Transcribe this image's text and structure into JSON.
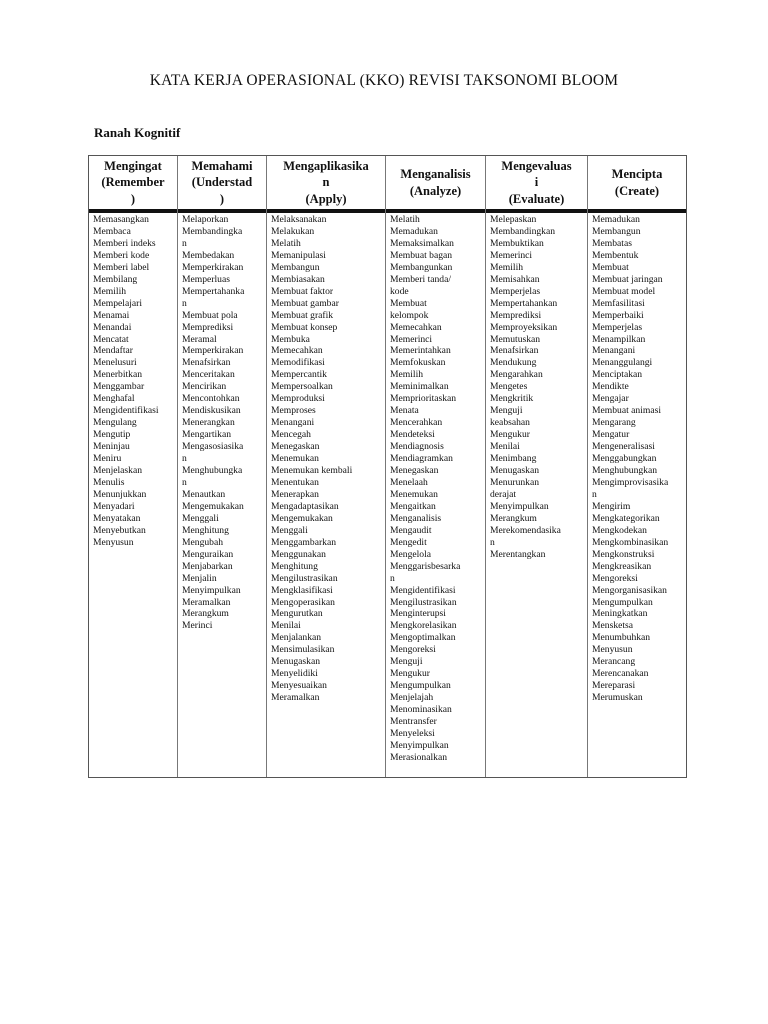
{
  "title": "KATA KERJA OPERASIONAL (KKO) REVISI TAKSONOMI BLOOM",
  "subtitle": "Ranah Kognitif",
  "columns": [
    {
      "header": "Mengingat\n(Remember\n)",
      "items": [
        "Memasangkan",
        "Membaca",
        "Memberi indeks",
        "Memberi kode",
        "Memberi label",
        "Membilang",
        "Memilih",
        "Mempelajari",
        "Menamai",
        "Menandai",
        "Mencatat",
        "Mendaftar",
        "Menelusuri",
        "Menerbitkan",
        "Menggambar",
        "Menghafal",
        "Mengidentifikasi",
        "Mengulang",
        "Mengutip",
        "Meninjau",
        "Meniru",
        "Menjelaskan",
        "Menulis",
        "Menunjukkan",
        "Menyadari",
        "Menyatakan",
        "Menyebutkan",
        "Menyusun"
      ]
    },
    {
      "header": "Memahami\n(Understad\n)",
      "items": [
        "Melaporkan",
        "Membandingka\nn",
        "Membedakan",
        "Memperkirakan",
        "Memperluas",
        "Mempertahanka\nn",
        "Membuat pola",
        "Memprediksi",
        "Meramal",
        "Memperkirakan",
        "Menafsirkan",
        "Menceritakan",
        "Mencirikan",
        "Mencontohkan",
        "Mendiskusikan",
        "Menerangkan",
        "Mengartikan",
        "Mengasosiasika\nn",
        "Menghubungka\nn",
        "Menautkan",
        "Mengemukakan",
        "Menggali",
        "Menghitung",
        "Mengubah",
        "Menguraikan",
        "Menjabarkan",
        "Menjalin",
        "Menyimpulkan",
        "Meramalkan",
        "Merangkum",
        "Merinci"
      ]
    },
    {
      "header": "Mengaplikasika\nn\n(Apply)",
      "items": [
        "Melaksanakan",
        "Melakukan",
        "Melatih",
        "Memanipulasi",
        "Membangun",
        "Membiasakan",
        "Membuat faktor",
        "Membuat gambar",
        "Membuat grafik",
        "Membuat konsep",
        "Membuka",
        "Memecahkan",
        "Memodifikasi",
        "Mempercantik",
        "Mempersoalkan",
        "Memproduksi",
        "Memproses",
        "Menangani",
        "Mencegah",
        "Menegaskan",
        "Menemukan",
        "Menemukan kembali",
        "Menentukan",
        "Menerapkan",
        "Mengadaptasikan",
        "Mengemukakan",
        "Menggali",
        "Menggambarkan",
        "Menggunakan",
        "Menghitung",
        "Mengilustrasikan",
        "Mengklasifikasi",
        "Mengoperasikan",
        "Mengurutkan",
        "Menilai",
        "Menjalankan",
        "Mensimulasikan",
        "Menugaskan",
        "Menyelidiki",
        "Menyesuaikan",
        "Meramalkan"
      ]
    },
    {
      "header": "Menganalisis\n(Analyze)",
      "items": [
        "Melatih",
        "Memadukan",
        "Memaksimalkan",
        "Membuat bagan",
        "Membangunkan",
        "Memberi tanda/\nkode",
        "Membuat\nkelompok",
        "Memecahkan",
        "Memerinci",
        "Memerintahkan",
        "Memfokuskan",
        "Memilih",
        "Meminimalkan",
        "Memprioritaskan",
        "Menata",
        "Mencerahkan",
        "Mendeteksi",
        "Mendiagnosis",
        "Mendiagramkan",
        "Menegaskan",
        "Menelaah",
        "Menemukan",
        "Mengaitkan",
        "Menganalisis",
        "Mengaudit",
        "Mengedit",
        "Mengelola",
        "Menggarisbesarka\nn",
        "Mengidentifikasi",
        "Mengilustrasikan",
        "Menginterupsi",
        "Mengkorelasikan",
        "Mengoptimalkan",
        "Mengoreksi",
        "Menguji",
        "Mengukur",
        "Mengumpulkan",
        "Menjelajah",
        "Menominasikan",
        "Mentransfer",
        "Menyeleksi",
        "Menyimpulkan",
        "Merasionalkan"
      ]
    },
    {
      "header": "Mengevaluas\ni\n(Evaluate)",
      "items": [
        "Melepaskan",
        "Membandingkan",
        "Membuktikan",
        "Memerinci",
        "Memilih",
        "Memisahkan",
        "Memperjelas",
        "Mempertahankan",
        "Memprediksi",
        "Memproyeksikan",
        "Memutuskan",
        "Menafsirkan",
        "Mendukung",
        "Mengarahkan",
        "Mengetes",
        "Mengkritik",
        "Menguji\nkeabsahan",
        "Mengukur",
        "Menilai",
        "Menimbang",
        "Menugaskan",
        "Menurunkan\nderajat",
        "Menyimpulkan",
        "Merangkum",
        "Merekomendasika\nn",
        "Merentangkan"
      ]
    },
    {
      "header": "Mencipta\n(Create)",
      "items": [
        "Memadukan",
        "Membangun",
        "Membatas",
        "Membentuk",
        "Membuat",
        "Membuat jaringan",
        "Membuat model",
        "Memfasilitasi",
        "Memperbaiki",
        "Memperjelas",
        "Menampilkan",
        "Menangani",
        "Menanggulangi",
        "Menciptakan",
        "Mendikte",
        "Mengajar",
        "Membuat animasi",
        "Mengarang",
        "Mengatur",
        "Mengeneralisasi",
        "Menggabungkan",
        "Menghubungkan",
        "Mengimprovisasika\nn",
        "Mengirim",
        "Mengkategorikan",
        "Mengkodekan",
        "Mengkombinasikan",
        "Mengkonstruksi",
        "Mengkreasikan",
        "Mengoreksi",
        "Mengorganisasikan",
        "Mengumpulkan",
        "Meningkatkan",
        "Mensketsa",
        "Menumbuhkan",
        "Menyusun",
        "Merancang",
        "Merencanakan",
        "Mereparasi",
        "Merumuskan"
      ]
    }
  ]
}
